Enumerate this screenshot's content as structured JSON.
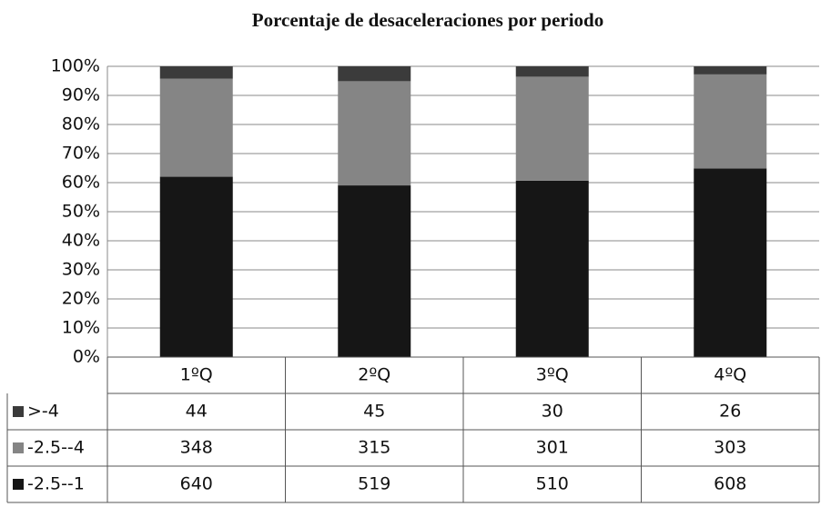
{
  "chart_data": {
    "type": "bar",
    "stacking": "percent",
    "title": "Porcentaje de desaceleraciones por periodo",
    "categories": [
      "1ºQ",
      "2ºQ",
      "3ºQ",
      "4ºQ"
    ],
    "series": [
      {
        "name": ">-4",
        "color": "#3b3b3b",
        "values": [
          44,
          45,
          30,
          26
        ]
      },
      {
        "name": "-2.5--4",
        "color": "#858585",
        "values": [
          348,
          315,
          301,
          303
        ]
      },
      {
        "name": "-2.5--1",
        "color": "#161616",
        "values": [
          640,
          519,
          510,
          608
        ]
      }
    ],
    "ylim": [
      0,
      100
    ],
    "yticks": [
      {
        "value": 0,
        "label": "0%"
      },
      {
        "value": 10,
        "label": "10%"
      },
      {
        "value": 20,
        "label": "20%"
      },
      {
        "value": 30,
        "label": "30%"
      },
      {
        "value": 40,
        "label": "40%"
      },
      {
        "value": 50,
        "label": "50%"
      },
      {
        "value": 60,
        "label": "60%"
      },
      {
        "value": 70,
        "label": "70%"
      },
      {
        "value": 80,
        "label": "80%"
      },
      {
        "value": 90,
        "label": "90%"
      },
      {
        "value": 100,
        "label": "100%"
      }
    ],
    "grid": true,
    "data_table": true
  }
}
